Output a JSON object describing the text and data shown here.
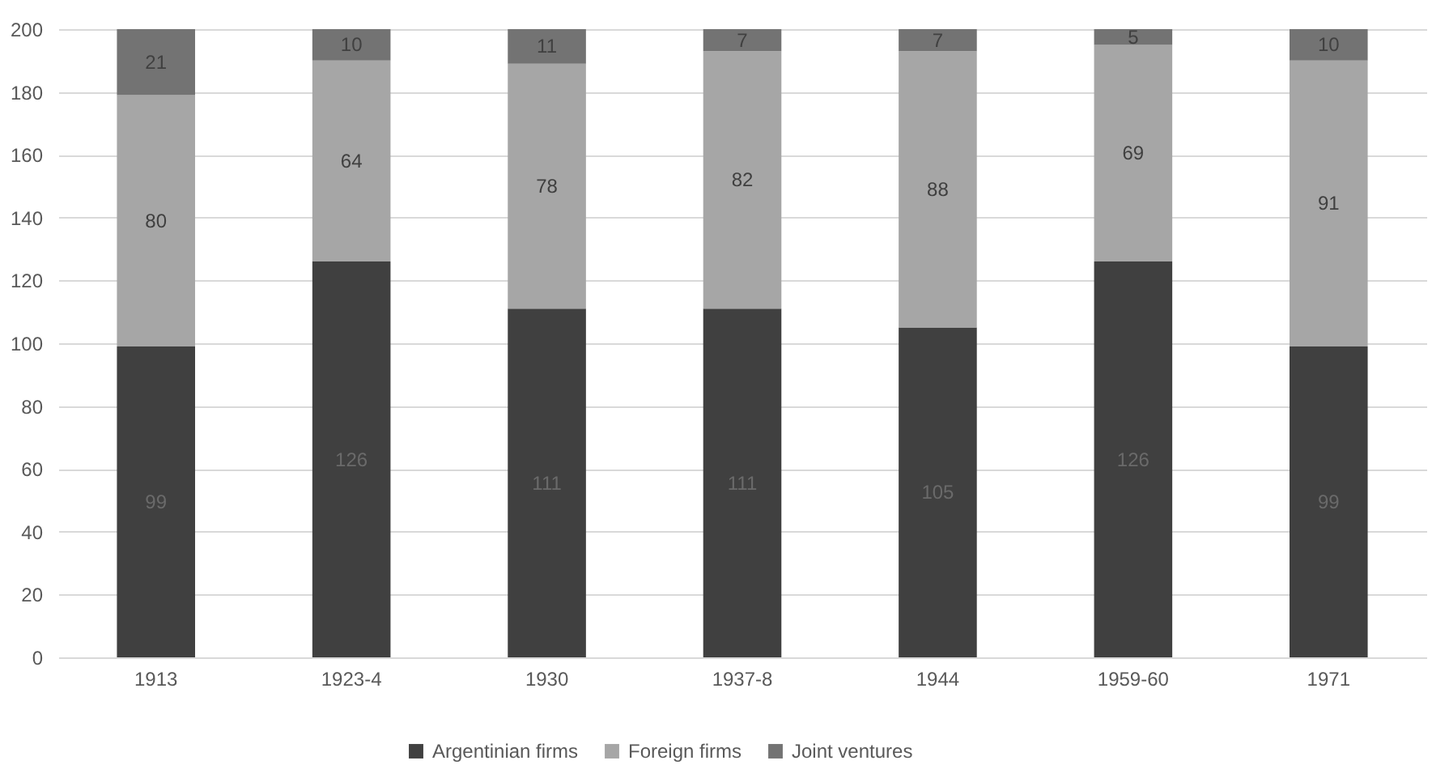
{
  "chart_data": {
    "type": "bar",
    "stacked": true,
    "categories": [
      "1913",
      "1923-4",
      "1930",
      "1937-8",
      "1944",
      "1959-60",
      "1971"
    ],
    "series": [
      {
        "name": "Argentinian firms",
        "color": "#404040",
        "values": [
          99,
          126,
          111,
          111,
          105,
          126,
          99
        ]
      },
      {
        "name": "Foreign firms",
        "color": "#a6a6a6",
        "values": [
          80,
          64,
          78,
          82,
          88,
          69,
          91
        ]
      },
      {
        "name": "Joint ventures",
        "color": "#737373",
        "values": [
          21,
          10,
          11,
          7,
          7,
          5,
          10
        ]
      }
    ],
    "ylim": [
      0,
      200
    ],
    "yticks": [
      0,
      20,
      40,
      60,
      80,
      100,
      120,
      140,
      160,
      180,
      200
    ],
    "grid": "y",
    "legend": "bottom",
    "data_labels": true
  }
}
